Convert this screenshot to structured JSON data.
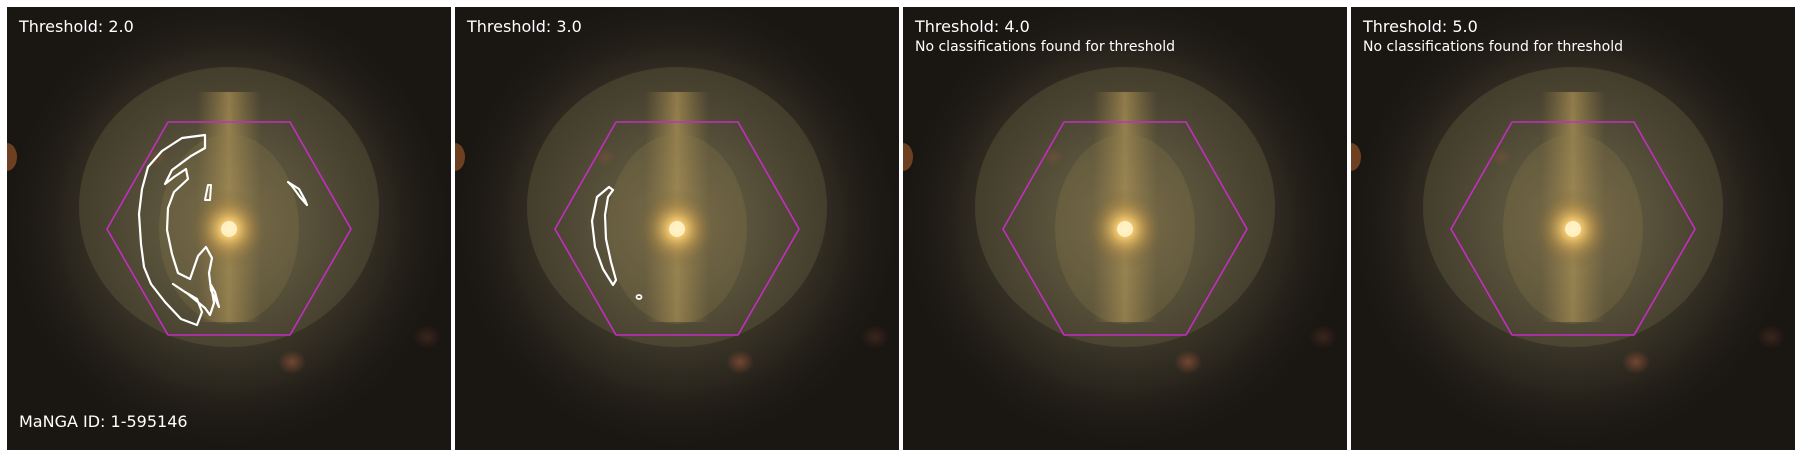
{
  "manga_id": "MaNGA ID: 1-595146",
  "colors": {
    "hexagon": "#c22fbf",
    "contour": "#ffffff",
    "background": "#1a1612",
    "core": "#ffe9a8"
  },
  "panels": [
    {
      "title": "Threshold: 2.0",
      "message": ""
    },
    {
      "title": "Threshold: 3.0",
      "message": ""
    },
    {
      "title": "Threshold: 4.0",
      "message": "No classifications found for threshold"
    },
    {
      "title": "Threshold: 5.0",
      "message": "No classifications found for threshold"
    }
  ]
}
